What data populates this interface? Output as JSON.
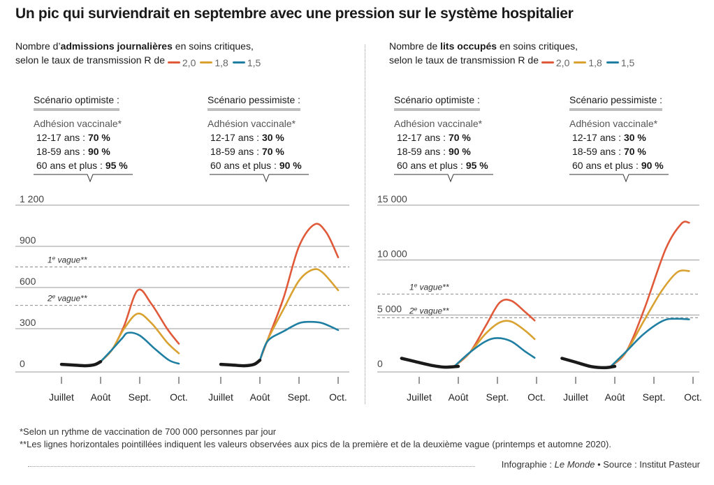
{
  "headline": "Un pic qui surviendrait en septembre avec une pression sur le système hospitalier",
  "legend": {
    "prefix": "selon le taux de transmission R de",
    "items": [
      {
        "label": "2,0",
        "color": "#e05a3a"
      },
      {
        "label": "1,8",
        "color": "#d9a230"
      },
      {
        "label": "1,5",
        "color": "#1f7fa3"
      }
    ]
  },
  "panels": [
    {
      "title_pre": "Nombre d’",
      "title_bold": "admissions journalières",
      "title_post": " en soins critiques,"
    },
    {
      "title_pre": "Nombre de ",
      "title_bold": "lits occupés",
      "title_post": " en soins critiques,"
    }
  ],
  "scenarios": {
    "optimiste": {
      "head": "Scénario optimiste :",
      "adh": "Adhésion vaccinale*",
      "rows": [
        {
          "label": "12-17 ans : ",
          "value": "70 %"
        },
        {
          "label": "18-59 ans : ",
          "value": "90 %"
        },
        {
          "label": "60 ans et plus : ",
          "value": "95 %"
        }
      ]
    },
    "pessimiste": {
      "head": "Scénario pessimiste :",
      "adh": "Adhésion vaccinale*",
      "rows": [
        {
          "label": "12-17 ans : ",
          "value": "30 %"
        },
        {
          "label": "18-59 ans : ",
          "value": "70 %"
        },
        {
          "label": "60 ans et plus : ",
          "value": "90 %"
        }
      ]
    }
  },
  "chart_data": [
    {
      "type": "line",
      "ylim": [
        0,
        1200
      ],
      "yticks": [
        {
          "value": 0,
          "label": "0"
        },
        {
          "value": 300,
          "label": "300"
        },
        {
          "value": 600,
          "label": "600"
        },
        {
          "value": 900,
          "label": "900"
        },
        {
          "value": 1200,
          "label": "1 200"
        }
      ],
      "reference_lines": [
        {
          "value": 750,
          "label": "1e vague**",
          "label_main": "1",
          "label_sup": "e",
          "label_rest": " vague**"
        },
        {
          "value": 470,
          "label": "2e vague**",
          "label_main": "2",
          "label_sup": "e",
          "label_rest": " vague**"
        }
      ],
      "months": [
        "Juillet",
        "Août",
        "Sept.",
        "Oct."
      ],
      "scenarios": [
        {
          "name": "Scénario optimiste",
          "observed": [
            [
              0,
              40
            ],
            [
              0.3,
              35
            ],
            [
              0.6,
              30
            ],
            [
              0.85,
              38
            ],
            [
              1.0,
              60
            ]
          ],
          "series": [
            {
              "r": "2,0",
              "color": "#e05a3a",
              "points": [
                [
                  1.0,
                  60
                ],
                [
                  1.3,
                  150
                ],
                [
                  1.6,
                  320
                ],
                [
                  1.95,
                  580
                ],
                [
                  2.3,
                  480
                ],
                [
                  2.7,
                  300
                ],
                [
                  3.0,
                  190
                ]
              ]
            },
            {
              "r": "1,8",
              "color": "#d9a230",
              "points": [
                [
                  1.0,
                  60
                ],
                [
                  1.3,
                  150
                ],
                [
                  1.6,
                  300
                ],
                [
                  1.95,
                  410
                ],
                [
                  2.3,
                  340
                ],
                [
                  2.7,
                  200
                ],
                [
                  3.0,
                  120
                ]
              ]
            },
            {
              "r": "1,5",
              "color": "#1f7fa3",
              "points": [
                [
                  1.0,
                  60
                ],
                [
                  1.3,
                  150
                ],
                [
                  1.55,
                  230
                ],
                [
                  1.7,
                  270
                ],
                [
                  2.0,
                  250
                ],
                [
                  2.4,
                  150
                ],
                [
                  2.75,
                  70
                ],
                [
                  3.0,
                  45
                ]
              ]
            }
          ]
        },
        {
          "name": "Scénario pessimiste",
          "observed": [
            [
              0,
              40
            ],
            [
              0.3,
              35
            ],
            [
              0.6,
              30
            ],
            [
              0.85,
              40
            ],
            [
              1.0,
              70
            ]
          ],
          "series": [
            {
              "r": "2,0",
              "color": "#e05a3a",
              "points": [
                [
                  1.0,
                  70
                ],
                [
                  1.2,
                  220
                ],
                [
                  1.6,
                  520
                ],
                [
                  2.0,
                  900
                ],
                [
                  2.4,
                  1060
                ],
                [
                  2.7,
                  1000
                ],
                [
                  3.0,
                  820
                ]
              ]
            },
            {
              "r": "1,8",
              "color": "#d9a230",
              "points": [
                [
                  1.0,
                  70
                ],
                [
                  1.2,
                  220
                ],
                [
                  1.6,
                  440
                ],
                [
                  2.0,
                  650
                ],
                [
                  2.35,
                  730
                ],
                [
                  2.6,
                  710
                ],
                [
                  3.0,
                  580
                ]
              ]
            },
            {
              "r": "1,5",
              "color": "#1f7fa3",
              "points": [
                [
                  1.0,
                  70
                ],
                [
                  1.2,
                  210
                ],
                [
                  1.6,
                  280
                ],
                [
                  2.0,
                  340
                ],
                [
                  2.3,
                  350
                ],
                [
                  2.6,
                  340
                ],
                [
                  3.0,
                  290
                ]
              ]
            }
          ]
        }
      ]
    },
    {
      "type": "line",
      "ylim": [
        0,
        15000
      ],
      "yticks": [
        {
          "value": 0,
          "label": "0"
        },
        {
          "value": 5000,
          "label": "5 000"
        },
        {
          "value": 10000,
          "label": "10 000"
        },
        {
          "value": 15000,
          "label": "15 000"
        }
      ],
      "reference_lines": [
        {
          "value": 6900,
          "label": "1e vague**",
          "label_main": "1",
          "label_sup": "e",
          "label_rest": " vague**"
        },
        {
          "value": 4750,
          "label": "2e vague**",
          "label_main": "2",
          "label_sup": "e",
          "label_rest": " vague**"
        }
      ],
      "months": [
        "Juillet",
        "Août",
        "Sept.",
        "Oct."
      ],
      "scenarios": [
        {
          "name": "Scénario optimiste",
          "observed": [
            [
              -0.45,
              1050
            ],
            [
              -0.1,
              750
            ],
            [
              0.3,
              420
            ],
            [
              0.65,
              250
            ],
            [
              1.0,
              320
            ]
          ],
          "series": [
            {
              "r": "2,0",
              "color": "#e05a3a",
              "points": [
                [
                  0.9,
                  320
                ],
                [
                  1.3,
                  1600
                ],
                [
                  1.7,
                  4000
                ],
                [
                  2.05,
                  6100
                ],
                [
                  2.35,
                  6300
                ],
                [
                  2.7,
                  5300
                ],
                [
                  2.95,
                  4500
                ]
              ]
            },
            {
              "r": "1,8",
              "color": "#d9a230",
              "points": [
                [
                  0.9,
                  320
                ],
                [
                  1.3,
                  1600
                ],
                [
                  1.7,
                  3300
                ],
                [
                  2.05,
                  4300
                ],
                [
                  2.35,
                  4400
                ],
                [
                  2.7,
                  3600
                ],
                [
                  2.95,
                  2800
                ]
              ]
            },
            {
              "r": "1,5",
              "color": "#1f7fa3",
              "points": [
                [
                  0.9,
                  320
                ],
                [
                  1.3,
                  1600
                ],
                [
                  1.7,
                  2600
                ],
                [
                  2.0,
                  2900
                ],
                [
                  2.35,
                  2600
                ],
                [
                  2.7,
                  1700
                ],
                [
                  2.95,
                  1100
                ]
              ]
            }
          ]
        },
        {
          "name": "Scénario pessimiste",
          "observed": [
            [
              -0.35,
              1050
            ],
            [
              0.0,
              700
            ],
            [
              0.4,
              300
            ],
            [
              0.75,
              200
            ],
            [
              1.0,
              320
            ]
          ],
          "series": [
            {
              "r": "2,0",
              "color": "#e05a3a",
              "points": [
                [
                  0.9,
                  320
                ],
                [
                  1.3,
                  1700
                ],
                [
                  1.75,
                  5500
                ],
                [
                  2.3,
                  11000
                ],
                [
                  2.7,
                  13300
                ],
                [
                  2.9,
                  13400
                ]
              ]
            },
            {
              "r": "1,8",
              "color": "#d9a230",
              "points": [
                [
                  0.9,
                  320
                ],
                [
                  1.3,
                  1700
                ],
                [
                  1.75,
                  4500
                ],
                [
                  2.2,
                  7200
                ],
                [
                  2.6,
                  8900
                ],
                [
                  2.9,
                  9000
                ]
              ]
            },
            {
              "r": "1,5",
              "color": "#1f7fa3",
              "points": [
                [
                  0.9,
                  320
                ],
                [
                  1.3,
                  1700
                ],
                [
                  1.75,
                  3300
                ],
                [
                  2.25,
                  4500
                ],
                [
                  2.6,
                  4650
                ],
                [
                  2.9,
                  4600
                ]
              ]
            }
          ]
        }
      ]
    }
  ],
  "footnotes": [
    "*Selon un rythme de vaccination de 700 000 personnes par jour",
    "**Les lignes horizontales pointillées indiquent les valeurs observées aux pics de la première et de la deuxième vague (printemps et automne 2020)."
  ],
  "credit": {
    "infographie_label": "Infographie : ",
    "infographie_name": "Le Monde",
    "separator": " • ",
    "source": "Source : Institut Pasteur"
  },
  "colors": {
    "observed": "#1a1a1a",
    "gridline": "#999999",
    "dashed": "#9a9a9a"
  }
}
